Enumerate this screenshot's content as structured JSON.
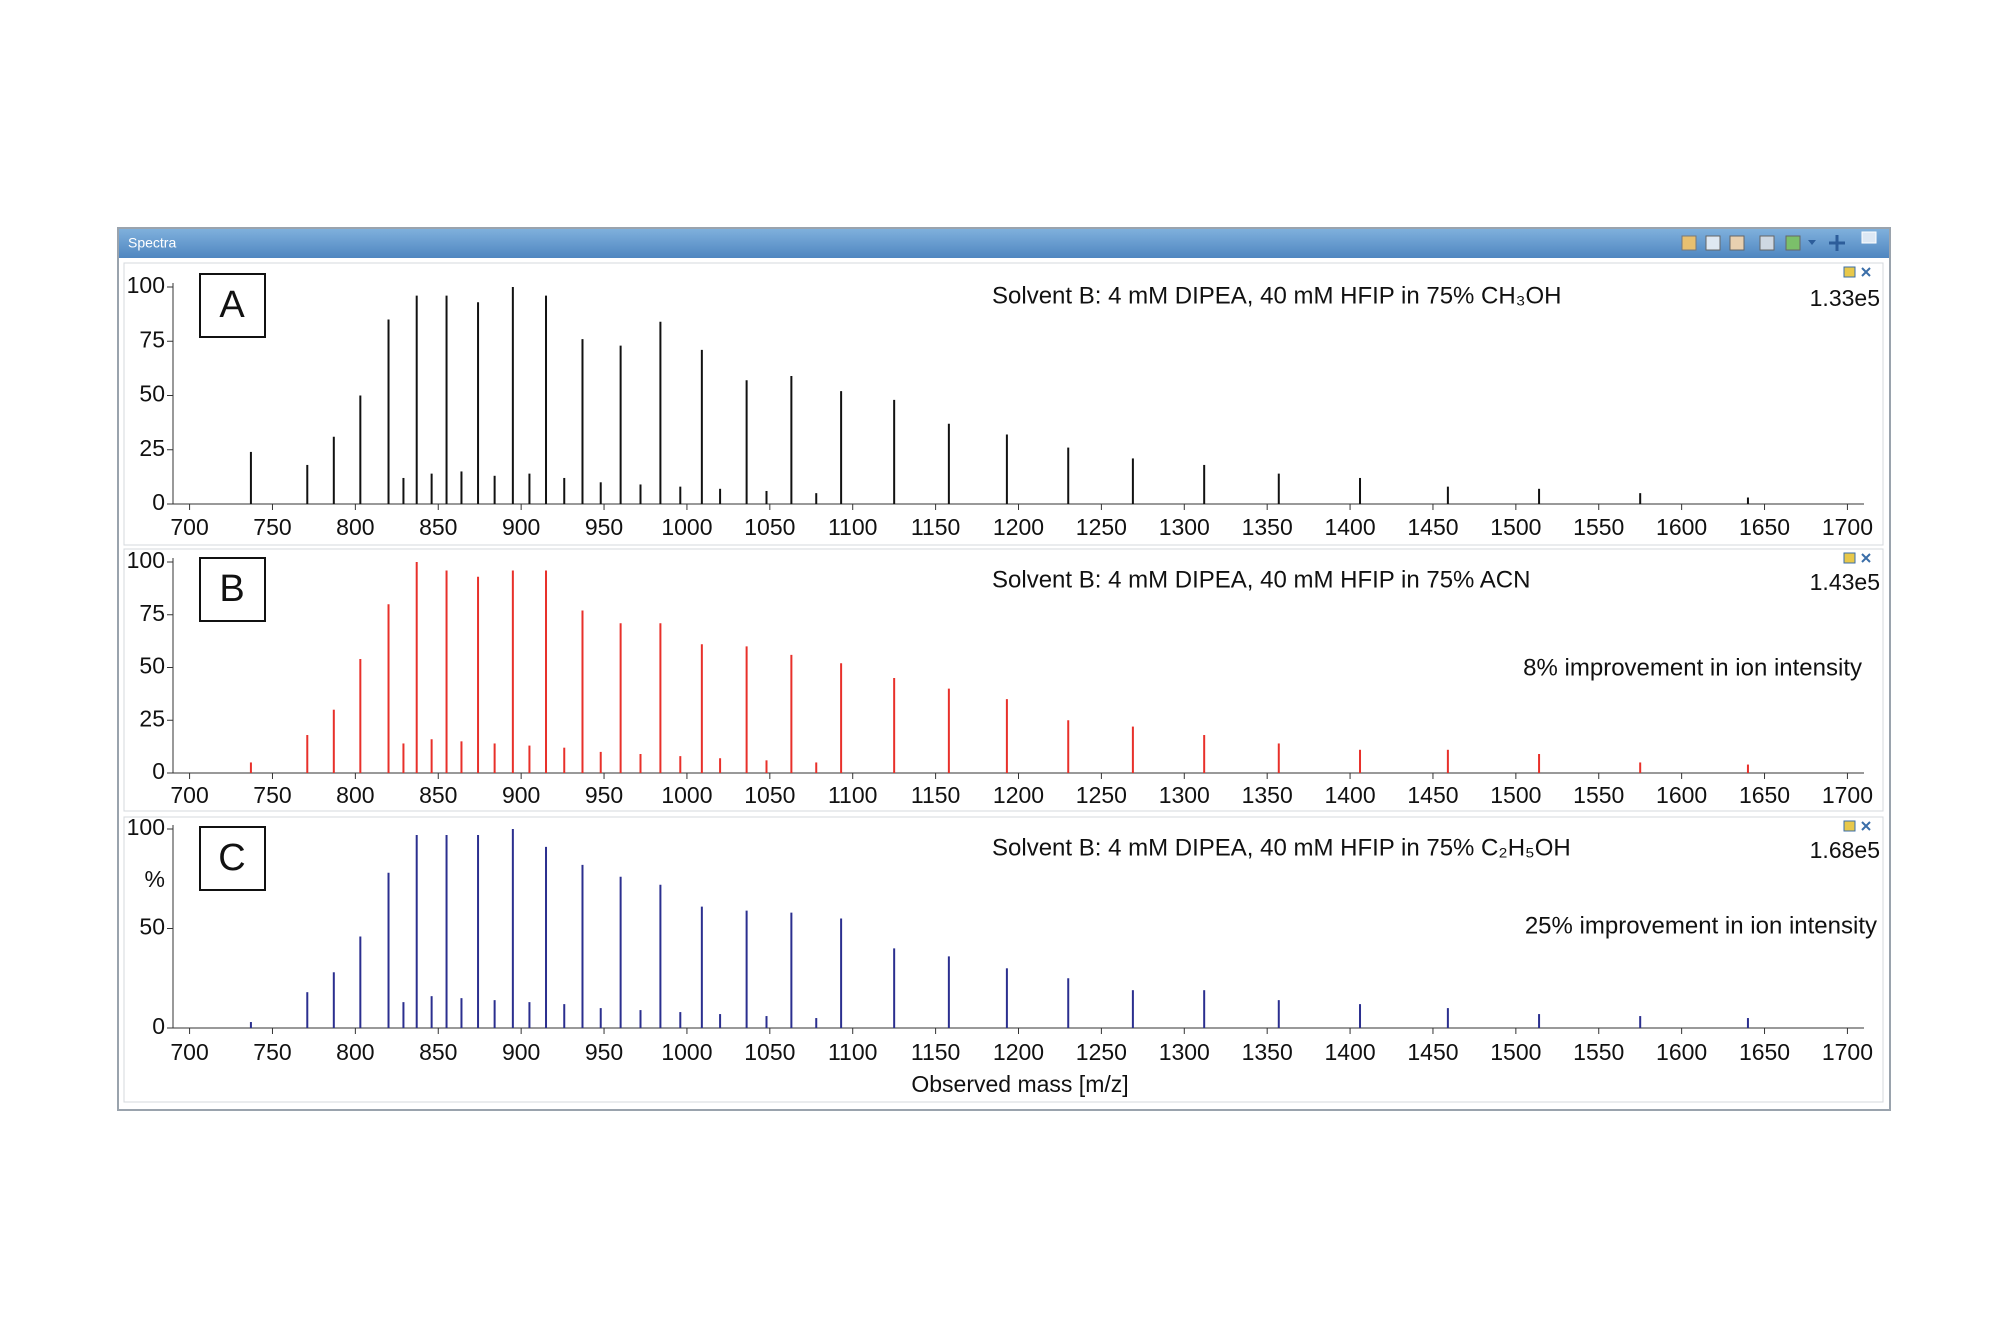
{
  "window": {
    "title": "Spectra"
  },
  "chart_data": [
    {
      "type": "bar",
      "panel": "A",
      "title": "Solvent B: 4 mM DIPEA, 40 mM HFIP in 75% CH₃OH",
      "scale_label": "1.33e5",
      "color": "#111111",
      "xlim": [
        690,
        1710
      ],
      "xticks": [
        700,
        750,
        800,
        850,
        900,
        950,
        1000,
        1050,
        1100,
        1150,
        1200,
        1250,
        1300,
        1350,
        1400,
        1450,
        1500,
        1550,
        1600,
        1650,
        1700
      ],
      "ylim": [
        0,
        100
      ],
      "yticks": [
        0,
        25,
        50,
        75,
        100
      ],
      "x": [
        737,
        771,
        787,
        803,
        820,
        829,
        837,
        846,
        855,
        864,
        874,
        884,
        895,
        905,
        915,
        926,
        937,
        948,
        960,
        972,
        984,
        996,
        1009,
        1020,
        1036,
        1048,
        1063,
        1078,
        1093,
        1125,
        1158,
        1193,
        1230,
        1269,
        1312,
        1357,
        1406,
        1459,
        1514,
        1575,
        1640
      ],
      "values": [
        24,
        18,
        31,
        50,
        85,
        12,
        96,
        14,
        96,
        15,
        93,
        13,
        100,
        14,
        96,
        12,
        76,
        10,
        73,
        9,
        84,
        8,
        71,
        7,
        57,
        6,
        59,
        5,
        52,
        48,
        37,
        32,
        26,
        21,
        18,
        14,
        12,
        8,
        7,
        5,
        3
      ]
    },
    {
      "type": "bar",
      "panel": "B",
      "title": "Solvent B: 4 mM DIPEA, 40 mM HFIP in 75% ACN",
      "scale_label": "1.43e5",
      "annotation": "8% improvement in ion intensity",
      "color": "#e8302a",
      "xlim": [
        690,
        1710
      ],
      "xticks": [
        700,
        750,
        800,
        850,
        900,
        950,
        1000,
        1050,
        1100,
        1150,
        1200,
        1250,
        1300,
        1350,
        1400,
        1450,
        1500,
        1550,
        1600,
        1650,
        1700
      ],
      "ylim": [
        0,
        100
      ],
      "yticks": [
        0,
        25,
        50,
        75,
        100
      ],
      "x": [
        737,
        771,
        787,
        803,
        820,
        829,
        837,
        846,
        855,
        864,
        874,
        884,
        895,
        905,
        915,
        926,
        937,
        948,
        960,
        972,
        984,
        996,
        1009,
        1020,
        1036,
        1048,
        1063,
        1078,
        1093,
        1125,
        1158,
        1193,
        1230,
        1269,
        1312,
        1357,
        1406,
        1459,
        1514,
        1575,
        1640
      ],
      "values": [
        5,
        18,
        30,
        54,
        80,
        14,
        100,
        16,
        96,
        15,
        93,
        14,
        96,
        13,
        96,
        12,
        77,
        10,
        71,
        9,
        71,
        8,
        61,
        7,
        60,
        6,
        56,
        5,
        52,
        45,
        40,
        35,
        25,
        22,
        18,
        14,
        11,
        11,
        9,
        5,
        4
      ]
    },
    {
      "type": "bar",
      "panel": "C",
      "title": "Solvent B: 4 mM DIPEA, 40 mM HFIP in 75% C₂H₅OH",
      "scale_label": "1.68e5",
      "annotation": "25% improvement in ion intensity",
      "color": "#2b2f8f",
      "ylabel": "%",
      "xlabel": "Observed mass [m/z]",
      "xlim": [
        690,
        1710
      ],
      "xticks": [
        700,
        750,
        800,
        850,
        900,
        950,
        1000,
        1050,
        1100,
        1150,
        1200,
        1250,
        1300,
        1350,
        1400,
        1450,
        1500,
        1550,
        1600,
        1650,
        1700
      ],
      "ylim": [
        0,
        100
      ],
      "yticks": [
        0,
        50,
        100
      ],
      "x": [
        737,
        771,
        787,
        803,
        820,
        829,
        837,
        846,
        855,
        864,
        874,
        884,
        895,
        905,
        915,
        926,
        937,
        948,
        960,
        972,
        984,
        996,
        1009,
        1020,
        1036,
        1048,
        1063,
        1078,
        1093,
        1125,
        1158,
        1193,
        1230,
        1269,
        1312,
        1357,
        1406,
        1459,
        1514,
        1575,
        1640
      ],
      "values": [
        3,
        18,
        28,
        46,
        78,
        13,
        97,
        16,
        97,
        15,
        97,
        14,
        100,
        13,
        91,
        12,
        82,
        10,
        76,
        9,
        72,
        8,
        61,
        7,
        59,
        6,
        58,
        5,
        55,
        40,
        36,
        30,
        25,
        19,
        19,
        14,
        12,
        10,
        7,
        6,
        5
      ]
    }
  ]
}
